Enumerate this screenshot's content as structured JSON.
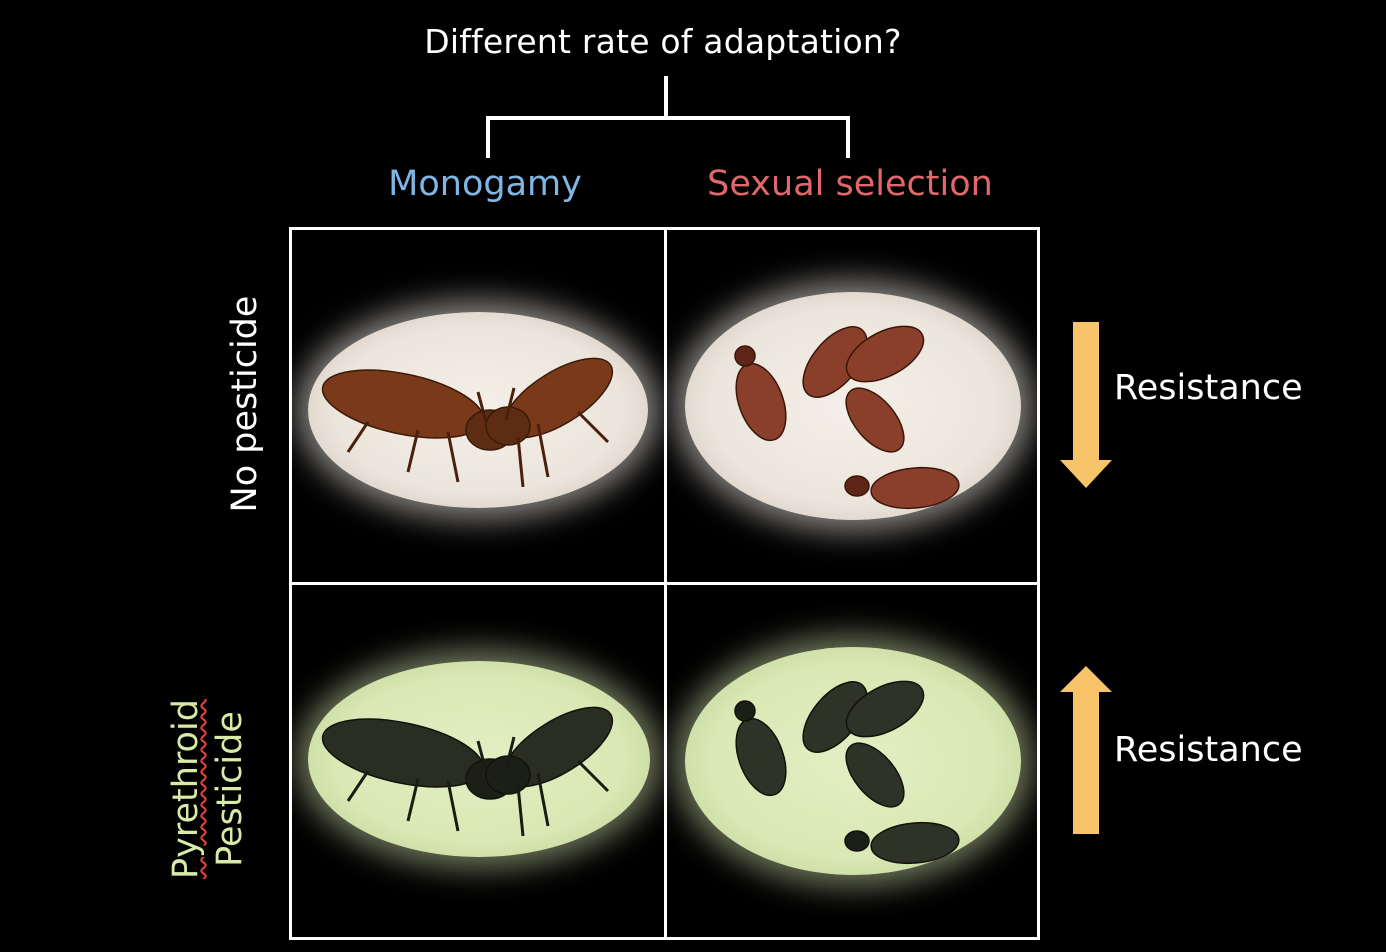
{
  "title": "Different rate of adaptation?",
  "columns": {
    "monogamy": "Monogamy",
    "sexual_selection": "Sexual selection"
  },
  "rows": {
    "no_pesticide": "No pesticide",
    "pyrethroid": "Pyrethroid",
    "pesticide": "Pesticide"
  },
  "arrows": {
    "top": {
      "label": "Resistance",
      "direction": "down"
    },
    "bottom": {
      "label": "Resistance",
      "direction": "up"
    }
  },
  "colors": {
    "background": "#000000",
    "monogamy": "#7fb6e6",
    "sexual_selection": "#e0686a",
    "pesticide_label": "#d8eaa8",
    "arrow": "#f7c46a",
    "beetle_brown": "#7a3a1a",
    "beetle_dark": "#2a2e22"
  },
  "icons": {
    "beetle": "beetle-icon"
  }
}
